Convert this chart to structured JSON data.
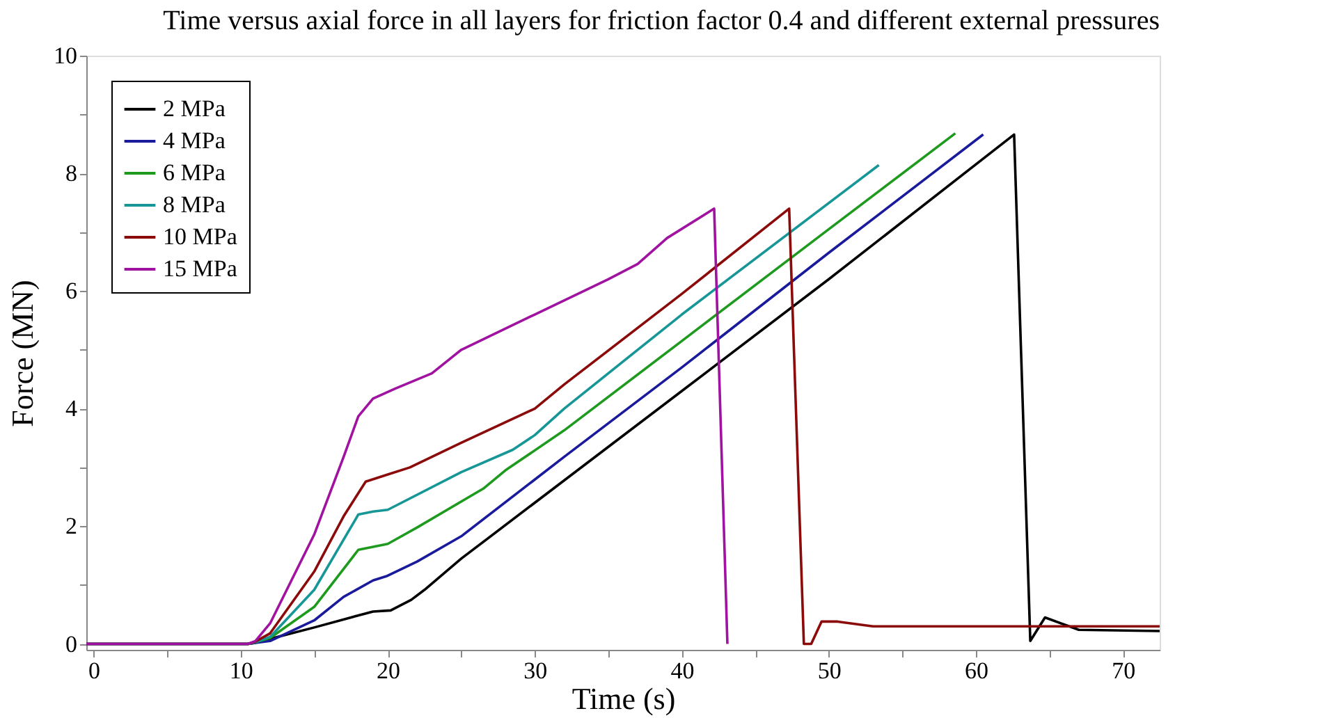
{
  "chart_data": {
    "type": "line",
    "title": "Time versus axial force in all layers for friction factor 0.4 and different external pressures",
    "xlabel": "Time (s)",
    "ylabel": "Force (MN)",
    "xlim": [
      -0.5,
      72.5
    ],
    "ylim": [
      -0.1,
      10
    ],
    "xticks": [
      0,
      {
        "value": 5,
        "label": null
      },
      10,
      {
        "value": 15,
        "label": null
      },
      20,
      {
        "value": 25,
        "label": null
      },
      30,
      {
        "value": 35,
        "label": null
      },
      40,
      {
        "value": 45,
        "label": null
      },
      50,
      {
        "value": 55,
        "label": null
      },
      60,
      {
        "value": 65,
        "label": null
      },
      70
    ],
    "yticks": [
      0,
      {
        "value": 1,
        "label": null
      },
      2,
      {
        "value": 3,
        "label": null
      },
      4,
      {
        "value": 5,
        "label": null
      },
      6,
      {
        "value": 7,
        "label": null
      },
      8,
      {
        "value": 9,
        "label": null
      },
      10
    ],
    "grid": false,
    "legend": "top left",
    "line_style": "solid",
    "marker": "none",
    "series": [
      {
        "name": "2  MPa",
        "color": "#000000",
        "x": [
          -0.5,
          10.5,
          11,
          13,
          15,
          17.5,
          19,
          20.2,
          21.6,
          22.5,
          25,
          32,
          40,
          50,
          62.6,
          63.7,
          64.7,
          67,
          72.5
        ],
        "values": [
          0,
          0,
          0.02,
          0.15,
          0.28,
          0.45,
          0.55,
          0.57,
          0.75,
          0.92,
          1.45,
          2.78,
          4.3,
          6.2,
          8.66,
          0.05,
          0.45,
          0.24,
          0.22
        ]
      },
      {
        "name": "4  MPa",
        "color": "#1a1a9c",
        "x": [
          -0.5,
          10.5,
          11,
          12,
          15,
          17,
          19,
          19.9,
          22,
          25,
          32,
          40,
          50,
          60.5
        ],
        "values": [
          0,
          0,
          0.02,
          0.05,
          0.4,
          0.8,
          1.08,
          1.15,
          1.4,
          1.83,
          3.18,
          4.7,
          6.65,
          8.66
        ]
      },
      {
        "name": "6  MPa",
        "color": "#1e9a1e",
        "x": [
          -0.5,
          10.5,
          11,
          12,
          15,
          18,
          19,
          20,
          22,
          26.5,
          28,
          32,
          40,
          50,
          58.6
        ],
        "values": [
          0,
          0,
          0.03,
          0.1,
          0.63,
          1.6,
          1.65,
          1.7,
          1.98,
          2.64,
          2.95,
          3.63,
          5.15,
          7.05,
          8.68
        ]
      },
      {
        "name": "8  MPa",
        "color": "#169696",
        "x": [
          -0.5,
          10.5,
          11,
          12,
          15,
          18,
          19,
          20,
          25,
          28.5,
          30,
          32,
          40,
          53.4
        ],
        "values": [
          0,
          0,
          0.03,
          0.12,
          0.92,
          2.2,
          2.25,
          2.28,
          2.92,
          3.3,
          3.55,
          4.0,
          5.6,
          8.14
        ]
      },
      {
        "name": "10 MPa",
        "color": "#8b0a0a",
        "x": [
          -0.5,
          10.5,
          11,
          12,
          15,
          17,
          18.5,
          20,
          21.5,
          25,
          30,
          32,
          40,
          47.3,
          48.3,
          48.8,
          49.5,
          50.6,
          53,
          72.5
        ],
        "values": [
          0,
          0,
          0.04,
          0.18,
          1.23,
          2.17,
          2.76,
          2.88,
          3.0,
          3.42,
          4.0,
          4.41,
          5.95,
          7.4,
          0,
          0,
          0.38,
          0.38,
          0.3,
          0.3
        ]
      },
      {
        "name": "15 MPa",
        "color": "#a012a0",
        "x": [
          -0.5,
          10.5,
          11,
          12,
          15,
          17,
          18,
          19,
          20.5,
          23,
          25,
          30,
          35,
          37,
          39,
          42.2,
          43.1
        ],
        "values": [
          0,
          0,
          0.05,
          0.35,
          1.86,
          3.18,
          3.87,
          4.17,
          4.34,
          4.6,
          5.0,
          5.6,
          6.2,
          6.46,
          6.9,
          7.4,
          0
        ]
      }
    ]
  }
}
